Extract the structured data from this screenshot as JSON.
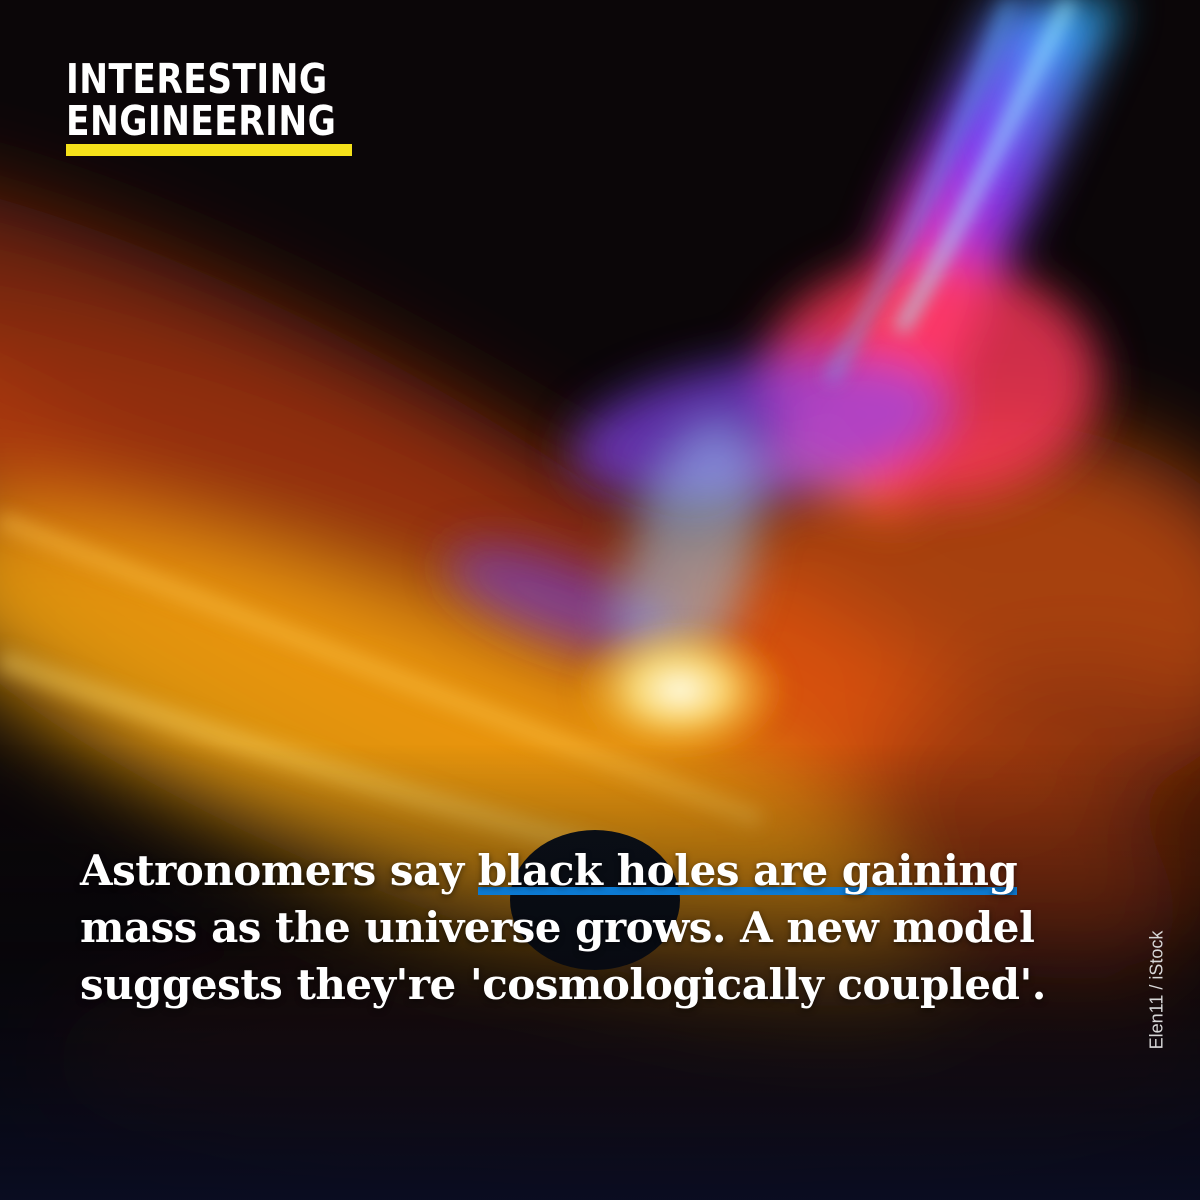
{
  "logo": {
    "line1": "INTERESTING",
    "line2": "ENGINEERING",
    "accent_color": "#f5e11a"
  },
  "headline": {
    "before": "Astronomers say ",
    "highlight": "black holes are gaining",
    "after": " mass as the universe grows. A new model suggests they're 'cosmologically coupled'.",
    "highlight_color": "#0c7ad2"
  },
  "credit": "Elen11 / iStock"
}
